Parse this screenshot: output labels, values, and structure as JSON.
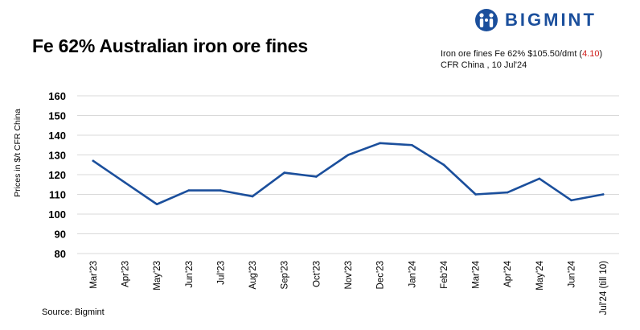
{
  "brand": {
    "name": "BIGMINT",
    "logo_icon": "bigmint-people-logo-icon",
    "color": "#1b4f9c"
  },
  "header": {
    "title": "Fe 62% Australian iron ore fines",
    "subtitle_line1_prefix": "Iron ore fines Fe 62% $105.50/dmt (",
    "subtitle_change": "4.10",
    "subtitle_line1_suffix": ")",
    "subtitle_line2": "CFR China , 10 Jul'24",
    "change_color": "#d0201d"
  },
  "footer": {
    "source": "Source: Bigmint"
  },
  "chart_data": {
    "type": "line",
    "title": "Fe 62% Australian iron ore fines",
    "ylabel": "Prices in $/t CFR China",
    "xlabel": "",
    "ylim": [
      80,
      160
    ],
    "yticks": [
      80,
      90,
      100,
      110,
      120,
      130,
      140,
      150,
      160
    ],
    "grid": true,
    "legend": "none",
    "categories": [
      "Mar'23",
      "Apr'23",
      "May'23",
      "Jun'23",
      "Jul'23",
      "Aug'23",
      "Sep'23",
      "Oct'23",
      "Nov'23",
      "Dec'23",
      "Jan'24",
      "Feb'24",
      "Mar'24",
      "Apr'24",
      "May'24",
      "Jun'24",
      "Jul'24 (till 10)"
    ],
    "series": [
      {
        "color": "#1b4f9c",
        "values": [
          127,
          116,
          105,
          112,
          112,
          109,
          121,
          119,
          130,
          136,
          135,
          125,
          110,
          111,
          118,
          107,
          110
        ]
      }
    ]
  }
}
